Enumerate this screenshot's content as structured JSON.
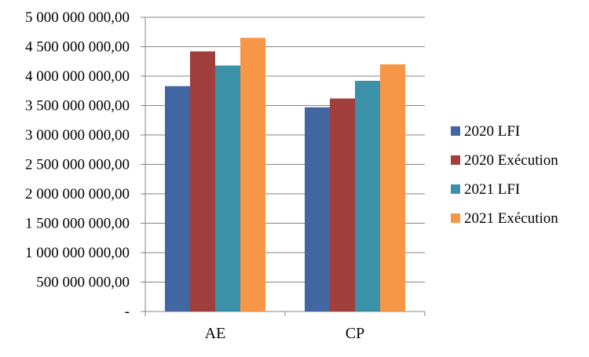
{
  "chart_data": {
    "type": "bar",
    "title": "",
    "xlabel": "",
    "ylabel": "",
    "categories": [
      "AE",
      "CP"
    ],
    "series": [
      {
        "name": "2020 LFI",
        "values": [
          3830000000,
          3470000000
        ]
      },
      {
        "name": "2020 Exécution",
        "values": [
          4420000000,
          3620000000
        ]
      },
      {
        "name": "2021 LFI",
        "values": [
          4180000000,
          3920000000
        ]
      },
      {
        "name": "2021 Exécution",
        "values": [
          4650000000,
          4200000000
        ]
      }
    ],
    "ylim": [
      0,
      5000000000
    ],
    "y_ticks": [
      0,
      500000000,
      1000000000,
      1500000000,
      2000000000,
      2500000000,
      3000000000,
      3500000000,
      4000000000,
      4500000000,
      5000000000
    ],
    "y_tick_labels": [
      "-",
      "500 000 000,00",
      "1 000 000 000,00",
      "1 500 000 000,00",
      "2 000 000 000,00",
      "2 500 000 000,00",
      "3 000 000 000,00",
      "3 500 000 000,00",
      "4 000 000 000,00",
      "4 500 000 000,00",
      "5 000 000 000,00"
    ],
    "grid": true,
    "legend_position": "right",
    "colors": [
      "#4266a1",
      "#a13f3e",
      "#3b91a8",
      "#f79646"
    ]
  }
}
